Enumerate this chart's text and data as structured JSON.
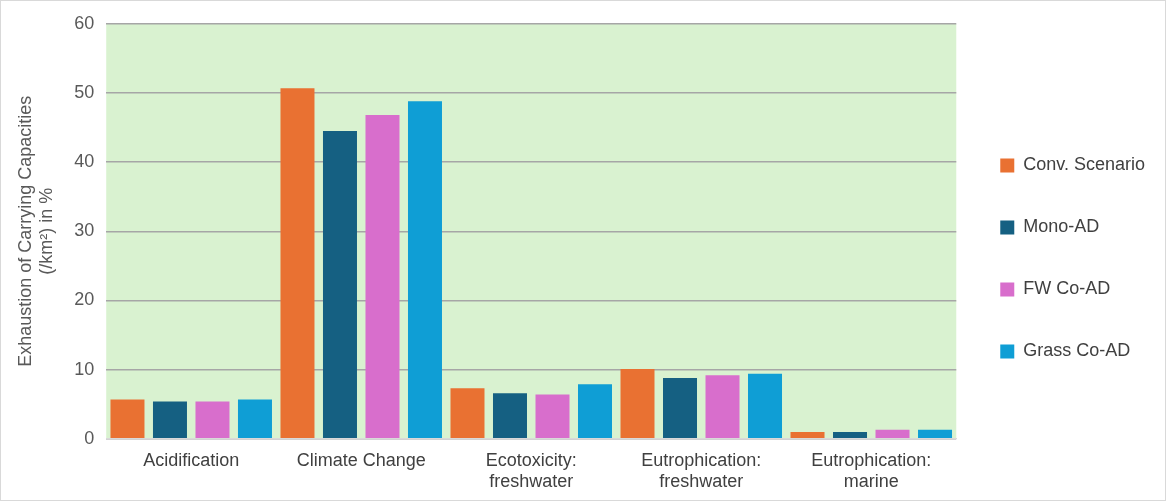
{
  "chart_data": {
    "type": "bar",
    "ylabel": "Exhaustion of Carrying Capacities (/km²) in %",
    "categories": [
      "Acidification",
      "Climate Change",
      "Ecotoxicity: freshwater",
      "Eutrophication: freshwater",
      "Eutrophication: marine"
    ],
    "series": [
      {
        "name": "Conv. Scenario",
        "color": "#e97132",
        "values": [
          5.7,
          50.7,
          7.3,
          10.1,
          1.0
        ]
      },
      {
        "name": "Mono-AD",
        "color": "#156082",
        "values": [
          5.4,
          44.5,
          6.6,
          8.8,
          1.0
        ]
      },
      {
        "name": "FW Co-AD",
        "color": "#d86ecc",
        "values": [
          5.4,
          46.8,
          6.4,
          9.2,
          1.3
        ]
      },
      {
        "name": "Grass Co-AD",
        "color": "#0f9ed5",
        "values": [
          5.7,
          48.8,
          7.9,
          9.4,
          1.3
        ]
      }
    ],
    "ylim": [
      0,
      60
    ],
    "yticks": [
      0,
      10,
      20,
      30,
      40,
      50,
      60
    ],
    "grid": "y",
    "legend": "right"
  }
}
